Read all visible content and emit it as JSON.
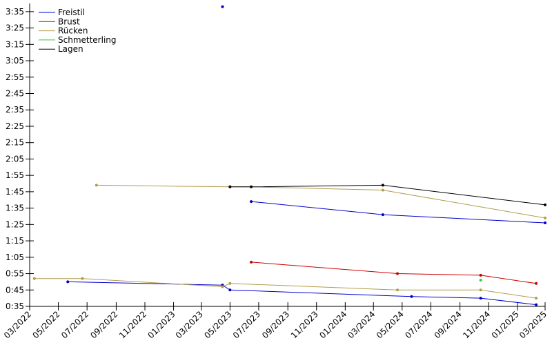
{
  "chart_data": {
    "type": "line",
    "title": "",
    "xlabel": "",
    "ylabel": "",
    "x_ticks": [
      "03/2022",
      "05/2022",
      "07/2022",
      "09/2022",
      "11/2022",
      "01/2023",
      "03/2023",
      "05/2023",
      "07/2023",
      "09/2023",
      "11/2023",
      "01/2024",
      "03/2024",
      "05/2024",
      "07/2024",
      "09/2024",
      "11/2024",
      "01/2025",
      "03/2025"
    ],
    "y_ticks": [
      "0:35",
      "0:45",
      "0:55",
      "1:05",
      "1:15",
      "1:25",
      "1:35",
      "1:45",
      "1:55",
      "2:05",
      "2:15",
      "2:25",
      "2:35",
      "2:45",
      "2:55",
      "3:05",
      "3:15",
      "3:25",
      "3:35"
    ],
    "x_range": [
      "2022-03-01",
      "2025-03-01"
    ],
    "y_range_seconds": [
      35,
      220
    ],
    "grid": false,
    "legend_position": "top-left",
    "series": [
      {
        "name": "Freistil",
        "color": "#0000cc",
        "lines": [
          [
            [
              "2022-05-21",
              50
            ],
            [
              "2023-04-15",
              48
            ],
            [
              "2023-05-01",
              45
            ],
            [
              "2024-05-21",
              41
            ],
            [
              "2024-10-15",
              40
            ],
            [
              "2025-02-10",
              36
            ]
          ],
          [
            [
              "2023-06-15",
              99
            ],
            [
              "2024-03-21",
              91
            ],
            [
              "2025-03-01",
              86
            ]
          ]
        ],
        "points": [
          [
            "2023-04-15",
            218
          ]
        ]
      },
      {
        "name": "Brust",
        "color": "#cc0000",
        "lines": [
          [
            [
              "2023-06-15",
              62
            ],
            [
              "2024-04-21",
              55
            ],
            [
              "2024-10-15",
              54
            ],
            [
              "2025-02-10",
              49
            ]
          ]
        ],
        "points": []
      },
      {
        "name": "Rücken",
        "color": "#b39b4d",
        "lines": [
          [
            [
              "2022-03-11",
              52
            ],
            [
              "2022-06-21",
              52
            ],
            [
              "2023-04-15",
              47
            ],
            [
              "2023-05-01",
              49
            ],
            [
              "2024-04-21",
              45
            ],
            [
              "2024-10-15",
              45
            ],
            [
              "2025-02-10",
              40
            ]
          ],
          [
            [
              "2022-07-21",
              109
            ],
            [
              "2023-05-01",
              108
            ],
            [
              "2023-06-15",
              108
            ],
            [
              "2024-03-21",
              106
            ],
            [
              "2025-03-01",
              89
            ]
          ]
        ],
        "points": []
      },
      {
        "name": "Schmetterling",
        "color": "#33cc33",
        "lines": [],
        "points": [
          [
            "2024-10-15",
            51
          ]
        ]
      },
      {
        "name": "Lagen",
        "color": "#000000",
        "lines": [
          [
            [
              "2023-05-01",
              108
            ],
            [
              "2023-06-15",
              108
            ],
            [
              "2024-03-21",
              109
            ],
            [
              "2025-03-01",
              97
            ]
          ]
        ],
        "points": []
      }
    ]
  }
}
